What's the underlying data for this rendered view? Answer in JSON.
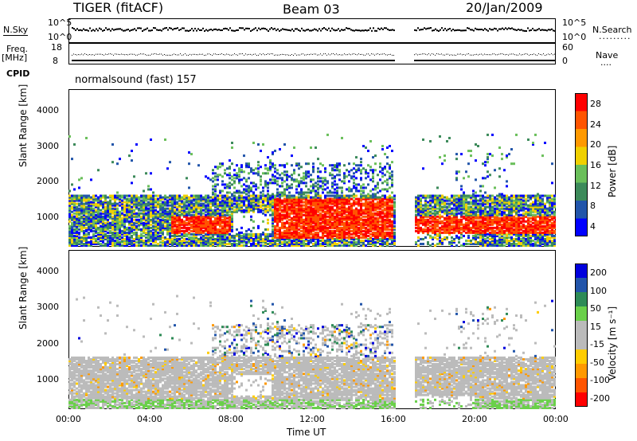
{
  "header": {
    "station": "TIGER (fitACF)",
    "beam": "Beam 03",
    "date": "20/Jan/2009"
  },
  "side_labels": {
    "nsky": "N.Sky",
    "nsearch": "N.Search",
    "freq": "Freq.",
    "freq_unit": "[MHz]",
    "nave": "Nave",
    "cpid": "CPID",
    "cpid_value": "normalsound (fast) 157"
  },
  "small_panels": {
    "noise_ticks_left": [
      "10^5",
      "10^0"
    ],
    "noise_ticks_right": [
      "10^5",
      "10^0"
    ],
    "freq_ticks": [
      "18",
      "8"
    ],
    "nave_ticks": [
      "60",
      "0"
    ]
  },
  "colors": {
    "power_scale": [
      "#0000ff",
      "#2255aa",
      "#3c8a5a",
      "#6abf5a",
      "#f0d000",
      "#ff9900",
      "#ff5500",
      "#ff0000"
    ],
    "velocity_scale": [
      "#ff0000",
      "#ff5500",
      "#ff9900",
      "#ffcc00",
      "#bbbbbb",
      "#bbbbbb",
      "#6ad04a",
      "#2e8b57",
      "#2255aa",
      "#0000dd"
    ]
  },
  "chart_data": [
    {
      "type": "heatmap",
      "name_key": "power",
      "ylabel": "Slant Range [km]",
      "ylim": [
        180,
        4600
      ],
      "yticks": [
        "4000",
        "3000",
        "2000",
        "1000"
      ],
      "xlim": [
        0,
        24
      ],
      "colorbar_label": "Power [dB]",
      "colorbar_ticks": [
        "28",
        "24",
        "20",
        "16",
        "12",
        "8",
        "4"
      ],
      "data_gap_hours": [
        16,
        17
      ]
    },
    {
      "type": "heatmap",
      "name_key": "velocity",
      "ylabel": "Slant Range [km]",
      "ylim": [
        180,
        4600
      ],
      "yticks": [
        "4000",
        "3000",
        "2000",
        "1000"
      ],
      "xlim": [
        0,
        24
      ],
      "colorbar_label": "Velocity [m s⁻¹]",
      "colorbar_ticks": [
        "200",
        "100",
        "50",
        "15",
        "-15",
        "-50",
        "-100",
        "-200"
      ],
      "data_gap_hours": [
        16,
        17
      ]
    }
  ],
  "x_axis": {
    "ticks": [
      "00:00",
      "04:00",
      "08:00",
      "12:00",
      "16:00",
      "20:00",
      "00:00"
    ],
    "label": "Time UT"
  }
}
